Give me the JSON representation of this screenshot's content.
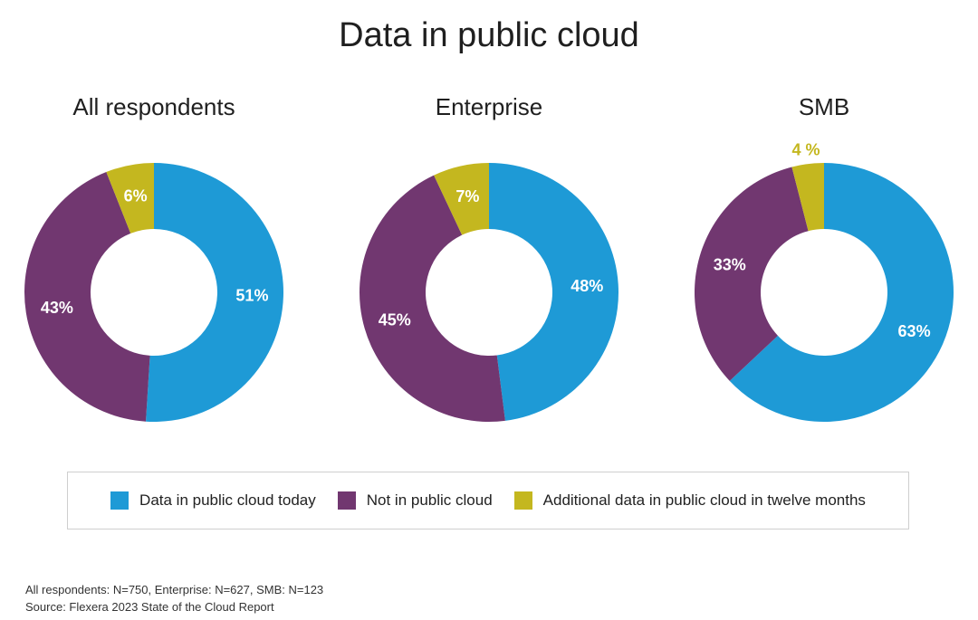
{
  "title": "Data in public cloud",
  "colors": {
    "today": "#1e9ad6",
    "not": "#713770",
    "additional": "#c4b71f",
    "outside_label": "#c4b71f",
    "inside_label": "#ffffff"
  },
  "chart_data": [
    {
      "type": "pie",
      "title": "All respondents",
      "slices": [
        {
          "name": "Data in public cloud today",
          "value": 51,
          "label": "51%"
        },
        {
          "name": "Not in public cloud",
          "value": 43,
          "label": "43%"
        },
        {
          "name": "Additional data in public cloud in twelve months",
          "value": 6,
          "label": "6%"
        }
      ]
    },
    {
      "type": "pie",
      "title": "Enterprise",
      "slices": [
        {
          "name": "Data in public cloud today",
          "value": 48,
          "label": "48%"
        },
        {
          "name": "Not in public cloud",
          "value": 45,
          "label": "45%"
        },
        {
          "name": "Additional data in public cloud in twelve months",
          "value": 7,
          "label": "7%"
        }
      ]
    },
    {
      "type": "pie",
      "title": "SMB",
      "slices": [
        {
          "name": "Data in public cloud today",
          "value": 63,
          "label": "63%"
        },
        {
          "name": "Not in public cloud",
          "value": 33,
          "label": "33%"
        },
        {
          "name": "Additional data in public cloud in twelve months",
          "value": 4,
          "label": "4 %"
        }
      ]
    }
  ],
  "legend": [
    {
      "label": "Data in public cloud today",
      "color": "#1e9ad6"
    },
    {
      "label": "Not in public cloud",
      "color": "#713770"
    },
    {
      "label": "Additional data in public cloud in twelve months",
      "color": "#c4b71f"
    }
  ],
  "footnote": {
    "sample": "All respondents: N=750, Enterprise: N=627, SMB: N=123",
    "source": "Source: Flexera 2023 State of the Cloud Report"
  }
}
